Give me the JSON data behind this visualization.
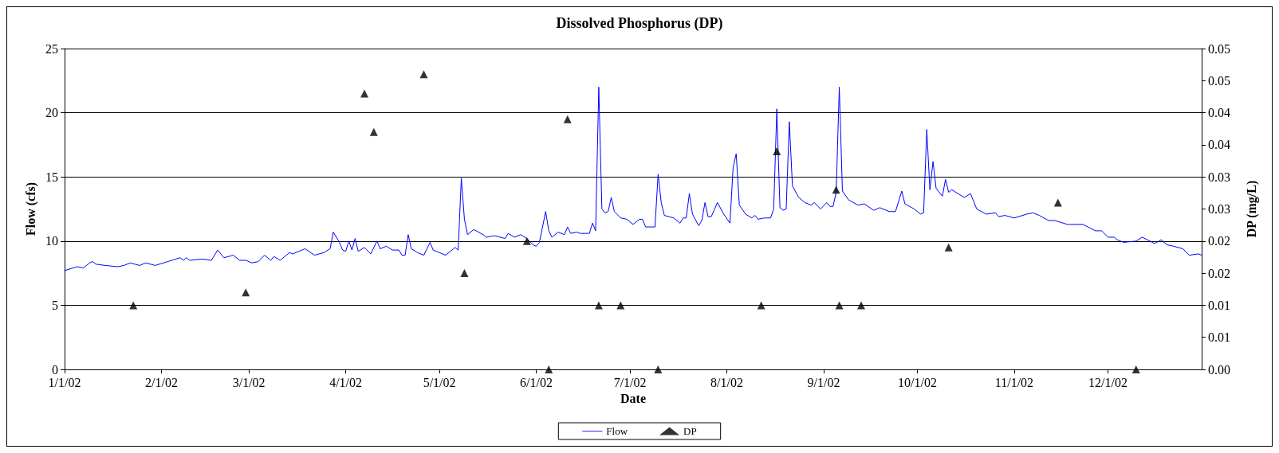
{
  "chart_data": {
    "type": "line",
    "title": "Dissolved Phosphorus (DP)",
    "xlabel": "Date",
    "ylabel": "Flow (cfs)",
    "y2label": "DP (mg/L)",
    "xlim": [
      "2002-01-01",
      "2002-12-31"
    ],
    "xticks": [
      {
        "value": "2002-01-01",
        "label": "1/1/02"
      },
      {
        "value": "2002-02-01",
        "label": "2/1/02"
      },
      {
        "value": "2002-03-01",
        "label": "3/1/02"
      },
      {
        "value": "2002-04-01",
        "label": "4/1/02"
      },
      {
        "value": "2002-05-01",
        "label": "5/1/02"
      },
      {
        "value": "2002-06-01",
        "label": "6/1/02"
      },
      {
        "value": "2002-07-01",
        "label": "7/1/02"
      },
      {
        "value": "2002-08-01",
        "label": "8/1/02"
      },
      {
        "value": "2002-09-01",
        "label": "9/1/02"
      },
      {
        "value": "2002-10-01",
        "label": "10/1/02"
      },
      {
        "value": "2002-11-01",
        "label": "11/1/02"
      },
      {
        "value": "2002-12-01",
        "label": "12/1/02"
      }
    ],
    "ylim": [
      0,
      25
    ],
    "yticks": [
      0,
      5,
      10,
      15,
      20,
      25
    ],
    "y2lim": [
      0,
      0.05
    ],
    "y2ticks": [
      {
        "value": 0,
        "label": "0.00"
      },
      {
        "value": 0.005,
        "label": "0.01"
      },
      {
        "value": 0.01,
        "label": "0.01"
      },
      {
        "value": 0.015,
        "label": "0.02"
      },
      {
        "value": 0.02,
        "label": "0.02"
      },
      {
        "value": 0.025,
        "label": "0.03"
      },
      {
        "value": 0.03,
        "label": "0.03"
      },
      {
        "value": 0.035,
        "label": "0.04"
      },
      {
        "value": 0.04,
        "label": "0.04"
      },
      {
        "value": 0.045,
        "label": "0.05"
      },
      {
        "value": 0.05,
        "label": "0.05"
      }
    ],
    "grid": "y",
    "legend": "bottom",
    "series": [
      {
        "name": "Flow",
        "color": "#0000ff",
        "marker": "none",
        "line_style": "solid",
        "x": [
          "2002-01-01",
          "2002-01-05",
          "2002-01-07",
          "2002-01-09",
          "2002-01-10",
          "2002-01-11",
          "2002-01-14",
          "2002-01-18",
          "2002-01-20",
          "2002-01-22",
          "2002-01-25",
          "2002-01-27",
          "2002-01-30",
          "2002-02-03",
          "2002-02-07",
          "2002-02-08",
          "2002-02-09",
          "2002-02-10",
          "2002-02-14",
          "2002-02-17",
          "2002-02-19",
          "2002-02-21",
          "2002-02-24",
          "2002-02-26",
          "2002-02-28",
          "2002-03-02",
          "2002-03-04",
          "2002-03-06",
          "2002-03-08",
          "2002-03-09",
          "2002-03-11",
          "2002-03-14",
          "2002-03-15",
          "2002-03-19",
          "2002-03-22",
          "2002-03-25",
          "2002-03-27",
          "2002-03-28",
          "2002-03-30",
          "2002-03-31",
          "2002-04-01",
          "2002-04-02",
          "2002-04-03",
          "2002-04-04",
          "2002-04-05",
          "2002-04-07",
          "2002-04-09",
          "2002-04-11",
          "2002-04-12",
          "2002-04-14",
          "2002-04-16",
          "2002-04-18",
          "2002-04-19",
          "2002-04-20",
          "2002-04-21",
          "2002-04-22",
          "2002-04-24",
          "2002-04-26",
          "2002-04-28",
          "2002-04-29",
          "2002-05-03",
          "2002-05-06",
          "2002-05-07",
          "2002-05-08",
          "2002-05-09",
          "2002-05-10",
          "2002-05-12",
          "2002-05-15",
          "2002-05-16",
          "2002-05-18",
          "2002-05-19",
          "2002-05-22",
          "2002-05-23",
          "2002-05-25",
          "2002-05-27",
          "2002-05-29",
          "2002-05-31",
          "2002-06-01",
          "2002-06-02",
          "2002-06-04",
          "2002-06-05",
          "2002-06-06",
          "2002-06-08",
          "2002-06-10",
          "2002-06-11",
          "2002-06-12",
          "2002-06-14",
          "2002-06-15",
          "2002-06-18",
          "2002-06-19",
          "2002-06-20",
          "2002-06-21",
          "2002-06-22",
          "2002-06-23",
          "2002-06-24",
          "2002-06-25",
          "2002-06-26",
          "2002-06-28",
          "2002-06-30",
          "2002-07-02",
          "2002-07-04",
          "2002-07-05",
          "2002-07-06",
          "2002-07-09",
          "2002-07-10",
          "2002-07-11",
          "2002-07-12",
          "2002-07-15",
          "2002-07-17",
          "2002-07-18",
          "2002-07-19",
          "2002-07-20",
          "2002-07-21",
          "2002-07-23",
          "2002-07-24",
          "2002-07-25",
          "2002-07-26",
          "2002-07-27",
          "2002-07-29",
          "2002-07-31",
          "2002-08-02",
          "2002-08-03",
          "2002-08-04",
          "2002-08-05",
          "2002-08-07",
          "2002-08-09",
          "2002-08-10",
          "2002-08-11",
          "2002-08-13",
          "2002-08-15",
          "2002-08-16",
          "2002-08-17",
          "2002-08-18",
          "2002-08-19",
          "2002-08-20",
          "2002-08-21",
          "2002-08-22",
          "2002-08-24",
          "2002-08-26",
          "2002-08-28",
          "2002-08-29",
          "2002-08-31",
          "2002-09-02",
          "2002-09-03",
          "2002-09-04",
          "2002-09-05",
          "2002-09-06",
          "2002-09-07",
          "2002-09-09",
          "2002-09-12",
          "2002-09-14",
          "2002-09-17",
          "2002-09-19",
          "2002-09-22",
          "2002-09-24",
          "2002-09-26",
          "2002-09-27",
          "2002-09-30",
          "2002-10-02",
          "2002-10-03",
          "2002-10-04",
          "2002-10-05",
          "2002-10-06",
          "2002-10-07",
          "2002-10-09",
          "2002-10-10",
          "2002-10-11",
          "2002-10-12",
          "2002-10-14",
          "2002-10-16",
          "2002-10-18",
          "2002-10-20",
          "2002-10-23",
          "2002-10-26",
          "2002-10-27",
          "2002-10-29",
          "2002-11-01",
          "2002-11-05",
          "2002-11-07",
          "2002-11-09",
          "2002-11-12",
          "2002-11-14",
          "2002-11-18",
          "2002-11-23",
          "2002-11-27",
          "2002-11-29",
          "2002-12-01",
          "2002-12-03",
          "2002-12-04",
          "2002-12-06",
          "2002-12-10",
          "2002-12-12",
          "2002-12-16",
          "2002-12-18",
          "2002-12-20",
          "2002-12-22",
          "2002-12-25",
          "2002-12-27",
          "2002-12-30",
          "2002-12-31"
        ],
        "values": [
          7.7,
          8.0,
          7.9,
          8.3,
          8.4,
          8.2,
          8.1,
          8.0,
          8.1,
          8.3,
          8.1,
          8.3,
          8.1,
          8.4,
          8.7,
          8.5,
          8.7,
          8.5,
          8.6,
          8.5,
          9.3,
          8.7,
          8.9,
          8.5,
          8.5,
          8.3,
          8.4,
          8.9,
          8.5,
          8.8,
          8.5,
          9.1,
          9.0,
          9.4,
          8.9,
          9.1,
          9.4,
          10.7,
          9.9,
          9.3,
          9.2,
          10.0,
          9.3,
          10.2,
          9.2,
          9.5,
          9.0,
          10.0,
          9.4,
          9.6,
          9.3,
          9.3,
          8.9,
          8.9,
          10.5,
          9.4,
          9.1,
          8.9,
          9.9,
          9.3,
          8.9,
          9.5,
          9.3,
          14.9,
          11.7,
          10.5,
          10.9,
          10.5,
          10.3,
          10.4,
          10.4,
          10.2,
          10.6,
          10.3,
          10.5,
          10.2,
          9.7,
          9.6,
          9.9,
          12.3,
          10.8,
          10.3,
          10.7,
          10.5,
          11.1,
          10.6,
          10.7,
          10.6,
          10.6,
          11.4,
          10.8,
          22.0,
          12.5,
          12.2,
          12.3,
          13.4,
          12.3,
          11.8,
          11.7,
          11.3,
          11.7,
          11.7,
          11.1,
          11.1,
          15.2,
          13.0,
          12.0,
          11.8,
          11.4,
          11.8,
          11.8,
          13.7,
          12.1,
          11.2,
          11.6,
          13.0,
          11.9,
          11.9,
          13.0,
          12.1,
          11.4,
          15.7,
          16.8,
          12.8,
          12.1,
          11.8,
          12.0,
          11.7,
          11.8,
          11.8,
          12.5,
          20.3,
          12.6,
          12.4,
          12.5,
          19.3,
          14.3,
          13.4,
          13.0,
          12.8,
          13.0,
          12.5,
          13.0,
          12.7,
          12.7,
          13.8,
          22.0,
          13.9,
          13.2,
          12.8,
          12.9,
          12.4,
          12.6,
          12.3,
          12.3,
          13.9,
          12.9,
          12.5,
          12.1,
          12.2,
          18.7,
          14.0,
          16.2,
          14.1,
          13.5,
          14.8,
          13.8,
          14.0,
          13.7,
          13.4,
          13.7,
          12.5,
          12.1,
          12.2,
          11.9,
          12.0,
          11.8,
          12.1,
          12.2,
          12.0,
          11.6,
          11.6,
          11.3,
          11.3,
          10.8,
          10.8,
          10.3,
          10.3,
          10.1,
          9.9,
          10.0,
          10.3,
          9.8,
          10.1,
          9.7,
          9.6,
          9.4,
          8.9,
          9.0,
          8.9
        ]
      },
      {
        "name": "DP",
        "type": "scatter",
        "axis": "y2",
        "color": "#000000",
        "marker": "triangle",
        "x": [
          "2002-01-23",
          "2002-02-28",
          "2002-04-07",
          "2002-04-10",
          "2002-04-26",
          "2002-05-09",
          "2002-05-29",
          "2002-06-05",
          "2002-06-11",
          "2002-06-21",
          "2002-06-28",
          "2002-07-10",
          "2002-08-12",
          "2002-08-17",
          "2002-09-05",
          "2002-09-06",
          "2002-09-13",
          "2002-10-11",
          "2002-11-15",
          "2002-12-10"
        ],
        "values": [
          0.01,
          0.012,
          0.043,
          0.037,
          0.046,
          0.015,
          0.02,
          0,
          0.039,
          0.01,
          0.01,
          0,
          0.01,
          0.034,
          0.028,
          0.01,
          0.01,
          0.019,
          0.026,
          0
        ]
      }
    ]
  }
}
